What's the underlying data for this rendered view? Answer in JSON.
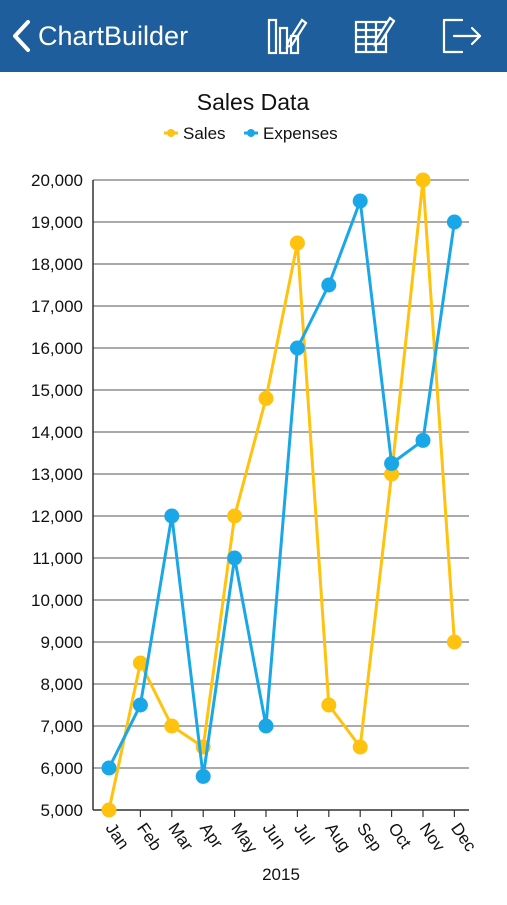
{
  "navbar": {
    "title": "ChartBuilder",
    "background": "#1f5e9c",
    "icons": [
      "back-chevron-icon",
      "chart-edit-icon",
      "table-edit-icon",
      "export-icon"
    ]
  },
  "chart_data": {
    "type": "line",
    "title": "Sales Data",
    "xlabel": "2015",
    "ylabel": "",
    "categories": [
      "Jan",
      "Feb",
      "Mar",
      "Apr",
      "May",
      "Jun",
      "Jul",
      "Aug",
      "Sep",
      "Oct",
      "Nov",
      "Dec"
    ],
    "ylim": [
      5000,
      20000
    ],
    "yticks": [
      5000,
      6000,
      7000,
      8000,
      9000,
      10000,
      11000,
      12000,
      13000,
      14000,
      15000,
      16000,
      17000,
      18000,
      19000,
      20000
    ],
    "ytick_labels": [
      "5,000",
      "6,000",
      "7,000",
      "8,000",
      "9,000",
      "10,000",
      "11,000",
      "12,000",
      "13,000",
      "14,000",
      "15,000",
      "16,000",
      "17,000",
      "18,000",
      "19,000",
      "20,000"
    ],
    "grid": true,
    "legend_position": "top",
    "series": [
      {
        "name": "Sales",
        "color": "#ffc20e",
        "values": [
          5000,
          8500,
          7000,
          6500,
          12000,
          14800,
          18500,
          7500,
          6500,
          13000,
          20000,
          9000
        ]
      },
      {
        "name": "Expenses",
        "color": "#1aa7e8",
        "values": [
          6000,
          7500,
          12000,
          5800,
          11000,
          7000,
          16000,
          17500,
          19500,
          13250,
          13800,
          19000
        ]
      }
    ]
  }
}
